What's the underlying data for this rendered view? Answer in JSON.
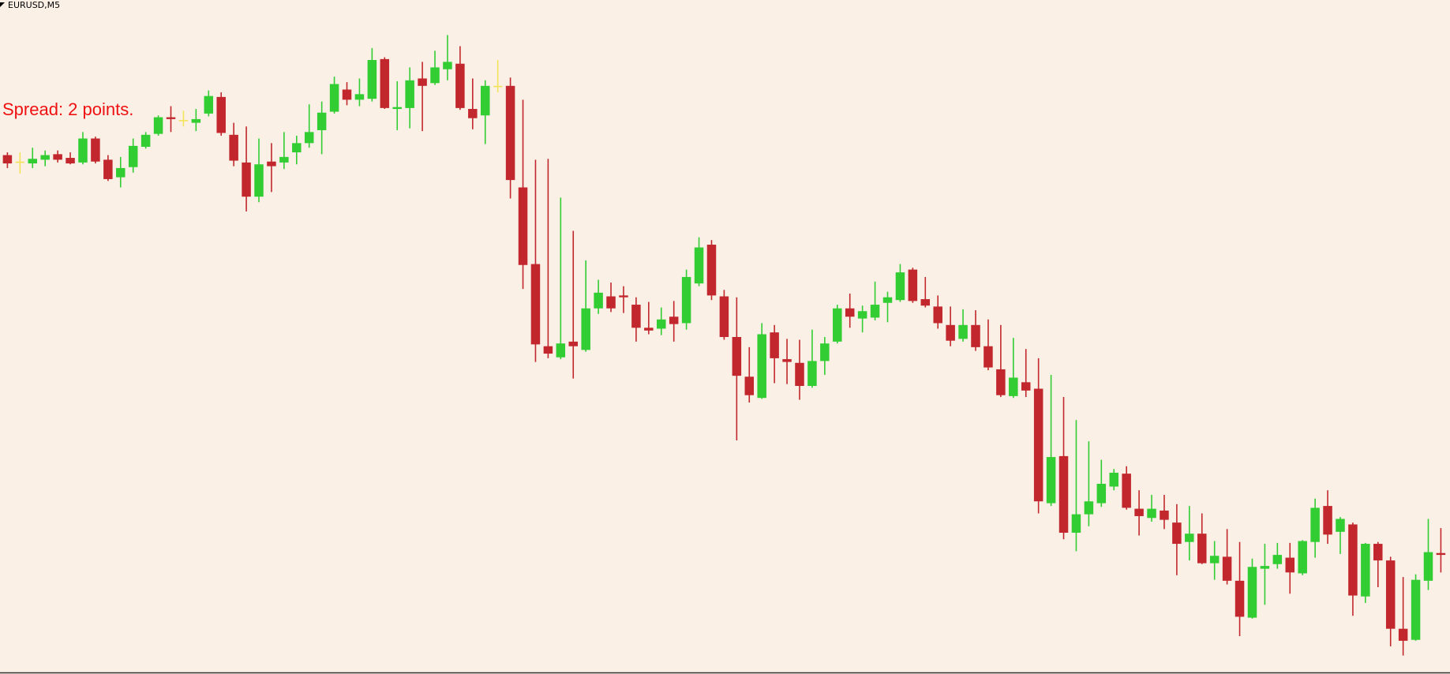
{
  "chart_data": {
    "type": "candlestick",
    "title": "EURUSD,M5",
    "annotation": "Spread: 2 points.",
    "annotation_color": "#ee1111",
    "up_color": "#32cd32",
    "down_color": "#c1272d",
    "doji_color": "#f2e35a",
    "background": "#faf0e6",
    "ylim": [
      0,
      730
    ],
    "open": [
      562,
      555,
      553,
      557,
      563,
      559,
      554,
      580,
      557,
      538,
      549,
      571,
      585,
      603,
      600,
      597,
      607,
      625,
      584,
      554,
      517,
      555,
      554,
      565,
      575,
      589,
      609,
      633,
      622,
      623,
      666,
      612,
      613,
      645,
      640,
      655,
      661,
      612,
      605,
      637,
      637,
      527,
      444,
      355,
      343,
      360,
      351,
      396,
      409,
      410,
      400,
      375,
      374,
      387,
      380,
      423,
      465,
      409,
      365,
      322,
      299,
      370,
      341,
      337,
      312,
      339,
      360,
      396,
      385,
      386,
      402,
      405,
      438,
      406,
      398,
      378,
      363,
      378,
      355,
      330,
      301,
      316,
      309,
      185,
      236,
      153,
      173,
      185,
      203,
      217,
      179,
      169,
      177,
      164,
      143,
      152,
      120,
      127,
      101,
      61,
      114,
      119,
      126,
      109,
      143,
      182,
      154,
      162,
      84,
      141,
      123,
      49,
      37,
      101,
      131
    ],
    "high": [
      565,
      565,
      570,
      567,
      567,
      565,
      587,
      582,
      562,
      560,
      580,
      587,
      605,
      615,
      610,
      612,
      632,
      630,
      597,
      593,
      580,
      575,
      587,
      583,
      617,
      620,
      647,
      641,
      645,
      678,
      668,
      642,
      657,
      663,
      675,
      692,
      680,
      645,
      643,
      665,
      646,
      622,
      557,
      558,
      516,
      480,
      448,
      427,
      424,
      420,
      408,
      403,
      397,
      404,
      438,
      473,
      470,
      416,
      408,
      354,
      380,
      378,
      363,
      362,
      373,
      365,
      400,
      412,
      399,
      425,
      414,
      444,
      440,
      430,
      410,
      398,
      395,
      394,
      384,
      378,
      364,
      352,
      342,
      324,
      300,
      275,
      252,
      232,
      222,
      225,
      199,
      194,
      194,
      184,
      182,
      174,
      144,
      157,
      143,
      125,
      141,
      142,
      142,
      145,
      190,
      199,
      170,
      164,
      142,
      143,
      127,
      105,
      108,
      168,
      158
    ],
    "low": [
      548,
      542,
      548,
      550,
      554,
      552,
      552,
      553,
      534,
      527,
      543,
      569,
      583,
      587,
      593,
      588,
      604,
      583,
      550,
      501,
      511,
      522,
      547,
      552,
      570,
      563,
      607,
      616,
      615,
      620,
      612,
      589,
      591,
      588,
      638,
      643,
      611,
      590,
      574,
      630,
      515,
      417,
      338,
      342,
      341,
      320,
      349,
      390,
      392,
      391,
      360,
      368,
      367,
      360,
      373,
      420,
      405,
      362,
      253,
      294,
      298,
      315,
      314,
      297,
      310,
      324,
      358,
      375,
      370,
      383,
      381,
      403,
      402,
      397,
      374,
      355,
      360,
      350,
      329,
      300,
      299,
      300,
      174,
      182,
      146,
      133,
      160,
      181,
      199,
      178,
      150,
      165,
      157,
      107,
      123,
      119,
      102,
      97,
      41,
      60,
      75,
      114,
      87,
      107,
      126,
      141,
      130,
      63,
      77,
      94,
      30,
      20,
      36,
      91,
      110
    ],
    "close": [
      553,
      555,
      558,
      562,
      557,
      553,
      580,
      555,
      536,
      548,
      572,
      584,
      603,
      601,
      600,
      601,
      626,
      586,
      556,
      517,
      552,
      550,
      560,
      575,
      587,
      608,
      639,
      622,
      628,
      665,
      613,
      614,
      643,
      637,
      657,
      663,
      613,
      602,
      637,
      637,
      535,
      443,
      357,
      347,
      358,
      355,
      396,
      413,
      396,
      408,
      375,
      372,
      384,
      379,
      430,
      462,
      410,
      365,
      323,
      302,
      368,
      342,
      338,
      312,
      339,
      358,
      396,
      387,
      393,
      400,
      408,
      435,
      404,
      399,
      380,
      361,
      378,
      354,
      332,
      302,
      321,
      307,
      187,
      235,
      153,
      173,
      187,
      206,
      218,
      180,
      171,
      179,
      167,
      141,
      152,
      120,
      128,
      101,
      62,
      116,
      117,
      129,
      110,
      144,
      180,
      151,
      168,
      85,
      141,
      123,
      49,
      36,
      102,
      132,
      129
    ]
  }
}
